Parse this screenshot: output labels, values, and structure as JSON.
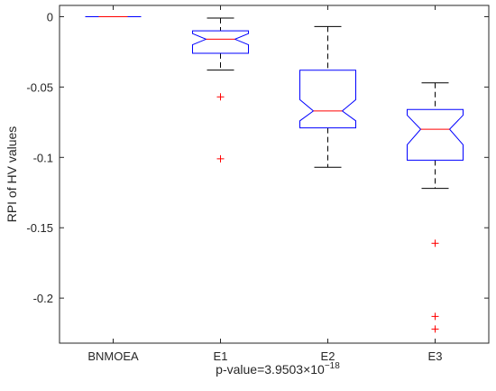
{
  "chart_data": {
    "type": "box",
    "categories": [
      "BNMOEA",
      "E1",
      "E2",
      "E3"
    ],
    "ylabel": "RPI of HV values",
    "xlabel_prefix": "p-value=",
    "xlabel_value": "3.9503×10",
    "xlabel_exponent": "−18",
    "ylim": [
      -0.232,
      0.008
    ],
    "yticks": [
      0,
      -0.05,
      -0.1,
      -0.15,
      -0.2
    ],
    "ytick_labels": [
      "0",
      "-0.05",
      "-0.1",
      "-0.15",
      "-0.2"
    ],
    "grid": false,
    "notched": true,
    "boxes": [
      {
        "category": "BNMOEA",
        "whisker_low": 0,
        "q1": 0,
        "median": 0,
        "q3": 0,
        "whisker_high": 0,
        "notch_low": 0,
        "notch_high": 0,
        "outliers": []
      },
      {
        "category": "E1",
        "whisker_low": -0.038,
        "q1": -0.026,
        "median": -0.016,
        "q3": -0.01,
        "whisker_high": -0.001,
        "notch_low": -0.02,
        "notch_high": -0.012,
        "outliers": [
          -0.057,
          -0.101
        ]
      },
      {
        "category": "E2",
        "whisker_low": -0.107,
        "q1": -0.079,
        "median": -0.067,
        "q3": -0.038,
        "whisker_high": -0.007,
        "notch_low": -0.074,
        "notch_high": -0.059,
        "outliers": []
      },
      {
        "category": "E3",
        "whisker_low": -0.122,
        "q1": -0.102,
        "median": -0.08,
        "q3": -0.066,
        "whisker_high": -0.047,
        "notch_low": -0.091,
        "notch_high": -0.07,
        "outliers": [
          -0.161,
          -0.213,
          -0.222
        ]
      }
    ],
    "colors": {
      "box": "#0000ff",
      "median": "#ff0000",
      "whisker": "#000000",
      "outlier": "#ff0000",
      "axis": "#262626"
    }
  }
}
